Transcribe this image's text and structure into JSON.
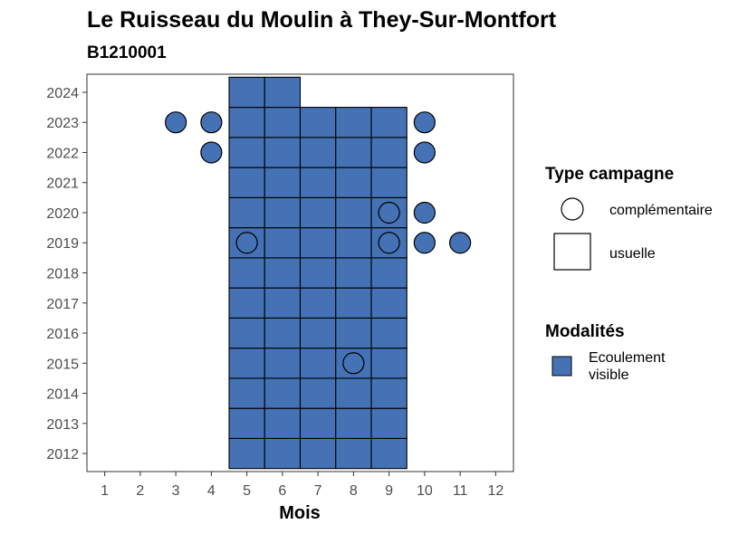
{
  "chart_data": {
    "type": "heatmap",
    "title": "Le Ruisseau du Moulin à They-Sur-Montfort",
    "subtitle": "B1210001",
    "xlabel": "Mois",
    "ylabel": "",
    "x_ticks": [
      1,
      2,
      3,
      4,
      5,
      6,
      7,
      8,
      9,
      10,
      11,
      12
    ],
    "y_ticks": [
      2012,
      2013,
      2014,
      2015,
      2016,
      2017,
      2018,
      2019,
      2020,
      2021,
      2022,
      2023,
      2024
    ],
    "xlim": [
      0.5,
      12.5
    ],
    "ylim": [
      2011.4,
      2024.6
    ],
    "fill_color": "#4472b4",
    "grid": false,
    "usuelle": [
      {
        "year": 2012,
        "months": [
          5,
          6,
          7,
          8,
          9
        ]
      },
      {
        "year": 2013,
        "months": [
          5,
          6,
          7,
          8,
          9
        ]
      },
      {
        "year": 2014,
        "months": [
          5,
          6,
          7,
          8,
          9
        ]
      },
      {
        "year": 2015,
        "months": [
          5,
          6,
          7,
          8,
          9
        ]
      },
      {
        "year": 2016,
        "months": [
          5,
          6,
          7,
          8,
          9
        ]
      },
      {
        "year": 2017,
        "months": [
          5,
          6,
          7,
          8,
          9
        ]
      },
      {
        "year": 2018,
        "months": [
          5,
          6,
          7,
          8,
          9
        ]
      },
      {
        "year": 2019,
        "months": [
          5,
          6,
          7,
          8,
          9
        ]
      },
      {
        "year": 2020,
        "months": [
          5,
          6,
          7,
          8,
          9
        ]
      },
      {
        "year": 2021,
        "months": [
          5,
          6,
          7,
          8,
          9
        ]
      },
      {
        "year": 2022,
        "months": [
          5,
          6,
          7,
          8,
          9
        ]
      },
      {
        "year": 2023,
        "months": [
          5,
          6,
          7,
          8,
          9
        ]
      },
      {
        "year": 2024,
        "months": [
          5,
          6
        ]
      }
    ],
    "complementaire": [
      {
        "year": 2023,
        "month": 3,
        "filled": true
      },
      {
        "year": 2023,
        "month": 4,
        "filled": true
      },
      {
        "year": 2023,
        "month": 10,
        "filled": true
      },
      {
        "year": 2022,
        "month": 4,
        "filled": true
      },
      {
        "year": 2022,
        "month": 10,
        "filled": true
      },
      {
        "year": 2020,
        "month": 9,
        "filled": false
      },
      {
        "year": 2020,
        "month": 10,
        "filled": true
      },
      {
        "year": 2019,
        "month": 5,
        "filled": false
      },
      {
        "year": 2019,
        "month": 9,
        "filled": false
      },
      {
        "year": 2019,
        "month": 10,
        "filled": true
      },
      {
        "year": 2019,
        "month": 11,
        "filled": true
      },
      {
        "year": 2015,
        "month": 8,
        "filled": false
      }
    ],
    "legend": {
      "placement": "right",
      "shape_title": "Type campagne",
      "shape_items": [
        "complémentaire",
        "usuelle"
      ],
      "fill_title": "Modalités",
      "fill_items": [
        "Ecoulement visible"
      ]
    }
  }
}
